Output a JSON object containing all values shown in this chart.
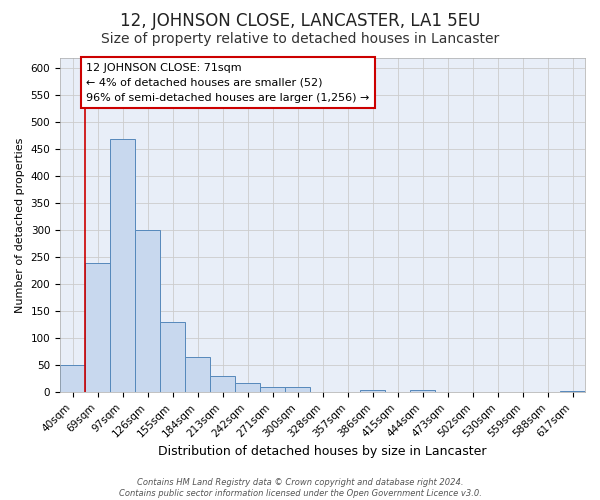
{
  "title": "12, JOHNSON CLOSE, LANCASTER, LA1 5EU",
  "subtitle": "Size of property relative to detached houses in Lancaster",
  "xlabel": "Distribution of detached houses by size in Lancaster",
  "ylabel": "Number of detached properties",
  "bar_labels": [
    "40sqm",
    "69sqm",
    "97sqm",
    "126sqm",
    "155sqm",
    "184sqm",
    "213sqm",
    "242sqm",
    "271sqm",
    "300sqm",
    "328sqm",
    "357sqm",
    "386sqm",
    "415sqm",
    "444sqm",
    "473sqm",
    "502sqm",
    "530sqm",
    "559sqm",
    "588sqm",
    "617sqm"
  ],
  "bar_heights": [
    50,
    240,
    470,
    300,
    130,
    65,
    30,
    17,
    10,
    10,
    0,
    0,
    5,
    0,
    5,
    0,
    0,
    0,
    0,
    0,
    3
  ],
  "bar_color": "#c8d8ee",
  "bar_edge_color": "#5588bb",
  "grid_color": "#cccccc",
  "background_color": "#e8eef8",
  "property_line_color": "#cc0000",
  "annotation_line1": "12 JOHNSON CLOSE: 71sqm",
  "annotation_line2": "← 4% of detached houses are smaller (52)",
  "annotation_line3": "96% of semi-detached houses are larger (1,256) →",
  "annotation_box_color": "#ffffff",
  "annotation_box_edge": "#cc0000",
  "footer": "Contains HM Land Registry data © Crown copyright and database right 2024.\nContains public sector information licensed under the Open Government Licence v3.0.",
  "ylim": [
    0,
    620
  ],
  "yticks": [
    0,
    50,
    100,
    150,
    200,
    250,
    300,
    350,
    400,
    450,
    500,
    550,
    600
  ],
  "title_fontsize": 12,
  "subtitle_fontsize": 10,
  "ylabel_fontsize": 8,
  "xlabel_fontsize": 9,
  "tick_fontsize": 7.5,
  "annotation_fontsize": 8,
  "footer_fontsize": 6
}
